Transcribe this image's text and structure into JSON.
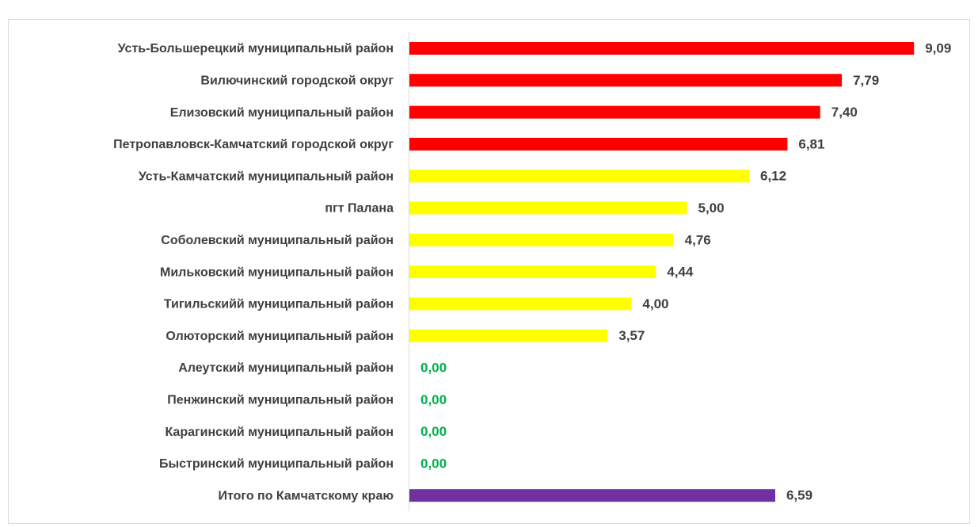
{
  "chart_data": {
    "type": "bar",
    "orientation": "horizontal",
    "categories": [
      "Усть-Большерецкий муниципальный район",
      "Вилючинский городской округ",
      "Елизовский муниципальный район",
      "Петропавловск-Камчатский городской округ",
      "Усть-Камчатский  муниципальный район",
      "пгт Палана",
      "Соболевский муниципальный район",
      "Мильковский муниципальный район",
      "Тигильскийй муниципальный район",
      "Олюторский муниципальный район",
      "Алеутский муниципальный район",
      "Пенжинский муниципальный район",
      "Карагинский муниципальный район",
      "Быстринский муниципальный район",
      "Итого по Камчатскому краю"
    ],
    "values": [
      9.09,
      7.79,
      7.4,
      6.81,
      6.12,
      5.0,
      4.76,
      4.44,
      4.0,
      3.57,
      0,
      0,
      0,
      0,
      6.59
    ],
    "value_labels": [
      "9,09",
      "7,79",
      "7,40",
      "6,81",
      "6,12",
      "5,00",
      "4,76",
      "4,44",
      "4,00",
      "3,57",
      "0,00",
      "0,00",
      "0,00",
      "0,00",
      "6,59"
    ],
    "colors": [
      "#ff0000",
      "#ff0000",
      "#ff0000",
      "#ff0000",
      "#ffff00",
      "#ffff00",
      "#ffff00",
      "#ffff00",
      "#ffff00",
      "#ffff00",
      "#ff0000",
      "#ff0000",
      "#ff0000",
      "#ff0000",
      "#7030a0"
    ],
    "label_colors": [
      "#404040",
      "#404040",
      "#404040",
      "#404040",
      "#404040",
      "#404040",
      "#404040",
      "#404040",
      "#404040",
      "#404040",
      "#00b050",
      "#00b050",
      "#00b050",
      "#00b050",
      "#404040"
    ],
    "xlim": [
      0,
      10
    ]
  }
}
